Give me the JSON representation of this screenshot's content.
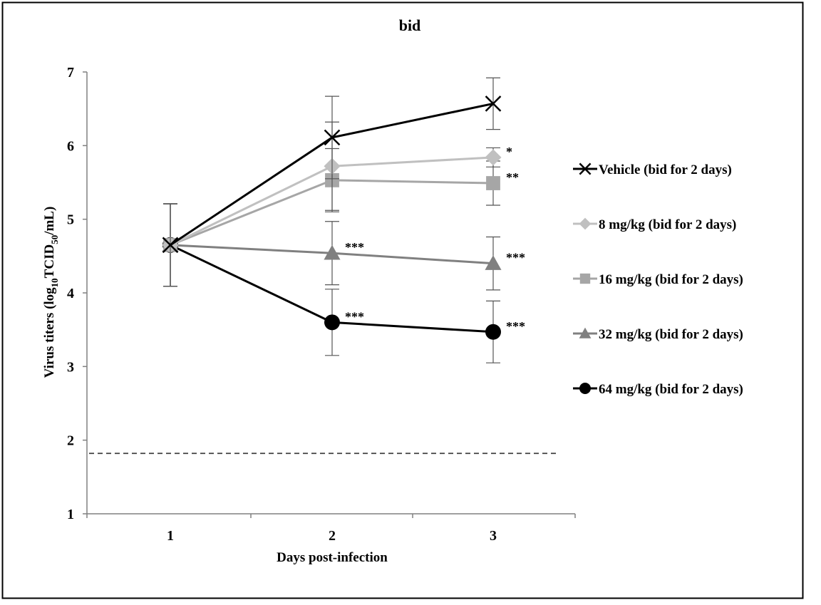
{
  "chart_data": {
    "type": "line",
    "title": "bid",
    "xlabel": "Days post-infection",
    "ylabel": {
      "prefix": "Virus titers (log",
      "sub1": "10",
      "mid": "TCID",
      "sub2": "50",
      "suffix": "/mL)"
    },
    "categories": [
      "1",
      "2",
      "3"
    ],
    "x": [
      1,
      2,
      3
    ],
    "ylim": [
      1,
      7
    ],
    "yticks": [
      "1",
      "2",
      "3",
      "4",
      "5",
      "6",
      "7"
    ],
    "grid": false,
    "legend_position": "right",
    "detection_limit": 1.82,
    "series": [
      {
        "name": "Vehicle (bid for 2 days)",
        "marker": "x",
        "color": "#000000",
        "values": [
          4.65,
          6.11,
          6.57
        ],
        "errors": [
          0.56,
          0.56,
          0.35
        ],
        "annotations": [
          "",
          "",
          ""
        ]
      },
      {
        "name": "8 mg/kg (bid for 2 days)",
        "marker": "diamond",
        "color": "#c0c0c0",
        "values": [
          4.65,
          5.72,
          5.84
        ],
        "errors": [
          0.56,
          0.6,
          0.13
        ],
        "annotations": [
          "",
          "",
          "*"
        ]
      },
      {
        "name": "16 mg/kg (bid for 2 days)",
        "marker": "square",
        "color": "#a6a6a6",
        "values": [
          4.65,
          5.53,
          5.49
        ],
        "errors": [
          0.56,
          0.43,
          0.3
        ],
        "annotations": [
          "",
          "",
          "**"
        ]
      },
      {
        "name": "32 mg/kg (bid for 2 days)",
        "marker": "triangle",
        "color": "#808080",
        "values": [
          4.65,
          4.54,
          4.4
        ],
        "errors": [
          0.56,
          0.43,
          0.36
        ],
        "annotations": [
          "",
          "***",
          "***"
        ]
      },
      {
        "name": "64 mg/kg (bid for 2 days)",
        "marker": "circle",
        "color": "#000000",
        "values": [
          4.65,
          3.6,
          3.47
        ],
        "errors": [
          0.56,
          0.45,
          0.42
        ],
        "annotations": [
          "",
          "***",
          "***"
        ]
      }
    ]
  }
}
